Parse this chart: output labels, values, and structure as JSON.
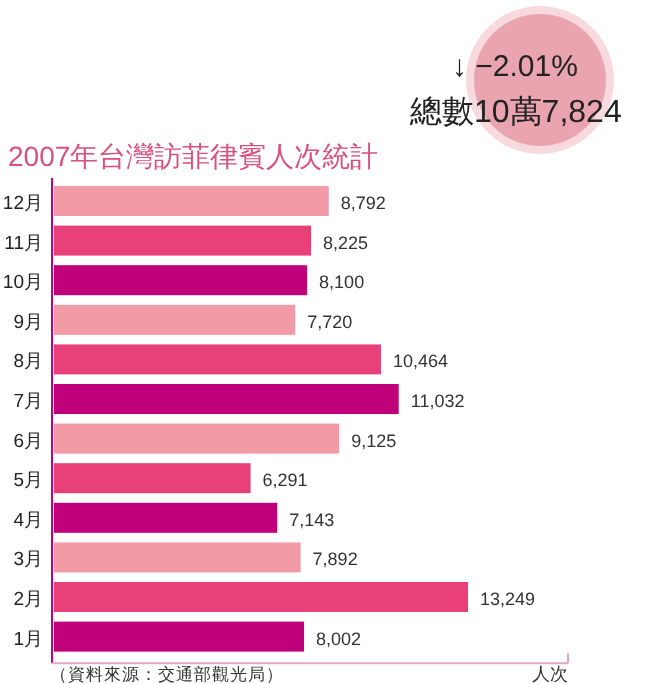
{
  "chart_data": {
    "type": "bar",
    "orientation": "horizontal",
    "title": "2007年台灣訪菲律賓人次統計",
    "xlabel": "人次",
    "categories": [
      "12月",
      "11月",
      "10月",
      "9月",
      "8月",
      "7月",
      "6月",
      "5月",
      "4月",
      "3月",
      "2月",
      "1月"
    ],
    "values": [
      8792,
      8225,
      8100,
      7720,
      10464,
      11032,
      9125,
      6291,
      7143,
      7892,
      13249,
      8002
    ],
    "colors": [
      "#f29aa6",
      "#e8417a",
      "#c0007a",
      "#f29aa6",
      "#e8417a",
      "#c0007a",
      "#f29aa6",
      "#e8417a",
      "#c0007a",
      "#f29aa6",
      "#e8417a",
      "#c0007a"
    ],
    "value_labels": [
      "8,792",
      "8,225",
      "8,100",
      "7,720",
      "10,464",
      "11,032",
      "9,125",
      "6,291",
      "7,143",
      "7,892",
      "13,249",
      "8,002"
    ],
    "annotations": [
      "↓ −2.01%",
      "總數10萬7,824",
      "（資料來源：交通部觀光局）"
    ]
  }
}
